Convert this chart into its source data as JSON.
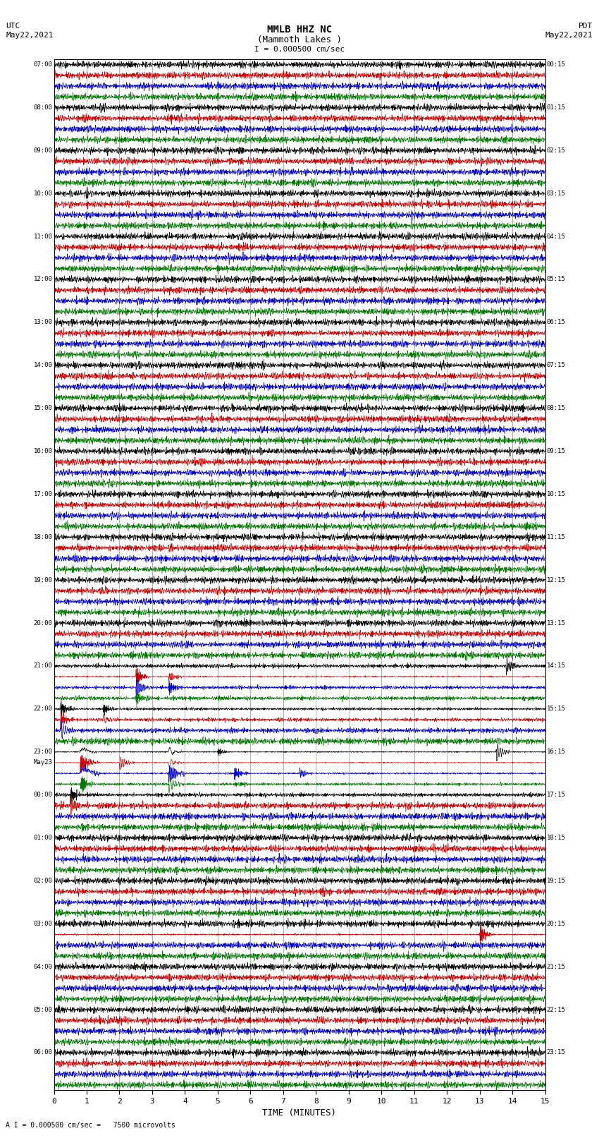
{
  "title_line1": "MMLB HHZ NC",
  "title_line2": "(Mammoth Lakes )",
  "scale_text": "I = 0.000500 cm/sec",
  "utc_label": "UTC",
  "utc_date": "May22,2021",
  "pdt_label": "PDT",
  "pdt_date": "May22,2021",
  "xlabel": "TIME (MINUTES)",
  "footer_text": "A I = 0.000500 cm/sec =   7500 microvolts",
  "bg_color": "#ffffff",
  "trace_colors": [
    "#000000",
    "#cc0000",
    "#0000cc",
    "#007700"
  ],
  "grid_color": "#777777",
  "x_min": 0,
  "x_max": 15,
  "left_labels": [
    "07:00",
    "",
    "",
    "",
    "08:00",
    "",
    "",
    "",
    "09:00",
    "",
    "",
    "",
    "10:00",
    "",
    "",
    "",
    "11:00",
    "",
    "",
    "",
    "12:00",
    "",
    "",
    "",
    "13:00",
    "",
    "",
    "",
    "14:00",
    "",
    "",
    "",
    "15:00",
    "",
    "",
    "",
    "16:00",
    "",
    "",
    "",
    "17:00",
    "",
    "",
    "",
    "18:00",
    "",
    "",
    "",
    "19:00",
    "",
    "",
    "",
    "20:00",
    "",
    "",
    "",
    "21:00",
    "",
    "",
    "",
    "22:00",
    "",
    "",
    "",
    "23:00",
    "May23",
    "",
    "",
    "00:00",
    "",
    "",
    "",
    "01:00",
    "",
    "",
    "",
    "02:00",
    "",
    "",
    "",
    "03:00",
    "",
    "",
    "",
    "04:00",
    "",
    "",
    "",
    "05:00",
    "",
    "",
    "",
    "06:00",
    "",
    "",
    ""
  ],
  "right_labels": [
    "00:15",
    "",
    "",
    "",
    "01:15",
    "",
    "",
    "",
    "02:15",
    "",
    "",
    "",
    "03:15",
    "",
    "",
    "",
    "04:15",
    "",
    "",
    "",
    "05:15",
    "",
    "",
    "",
    "06:15",
    "",
    "",
    "",
    "07:15",
    "",
    "",
    "",
    "08:15",
    "",
    "",
    "",
    "09:15",
    "",
    "",
    "",
    "10:15",
    "",
    "",
    "",
    "11:15",
    "",
    "",
    "",
    "12:15",
    "",
    "",
    "",
    "13:15",
    "",
    "",
    "",
    "14:15",
    "",
    "",
    "",
    "15:15",
    "",
    "",
    "",
    "16:15",
    "",
    "",
    "",
    "17:15",
    "",
    "",
    "",
    "18:15",
    "",
    "",
    "",
    "19:15",
    "",
    "",
    "",
    "20:15",
    "",
    "",
    "",
    "21:15",
    "",
    "",
    "",
    "22:15",
    "",
    "",
    "",
    "23:15",
    "",
    "",
    ""
  ]
}
